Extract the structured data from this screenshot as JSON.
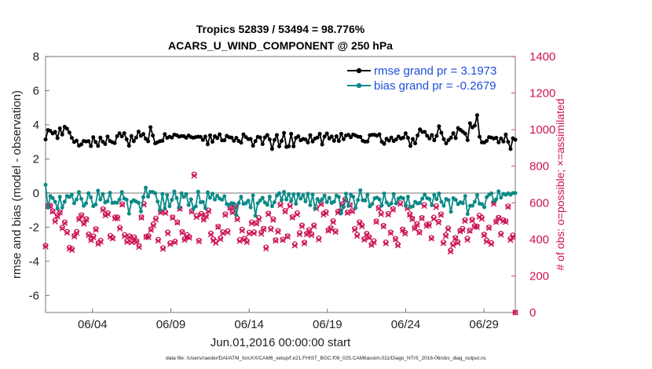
{
  "chart_data": {
    "type": "line",
    "title": "Tropics 52839 / 53494 = 98.776%",
    "subtitle": "ACARS_U_WIND_COMPONENT @ 250 hPa",
    "xlabel": "Jun.01,2016 00:00:00 start",
    "ylabel": "rmse and bias (model - observation)",
    "ylabel_right": "# of obs: o=possible; ×=assimilated",
    "xlim": [
      0,
      30.0
    ],
    "ylim": [
      -7,
      8
    ],
    "ylim_right": [
      0,
      1400
    ],
    "x_ticks": [
      {
        "x": 3.0,
        "label": "06/04"
      },
      {
        "x": 8.0,
        "label": "06/09"
      },
      {
        "x": 13.0,
        "label": "06/14"
      },
      {
        "x": 18.0,
        "label": "06/19"
      },
      {
        "x": 23.0,
        "label": "06/24"
      },
      {
        "x": 28.0,
        "label": "06/29"
      }
    ],
    "y_ticks": [
      8,
      6,
      4,
      2,
      0,
      -2,
      -4,
      -6
    ],
    "y_ticks_right": [
      1400,
      1200,
      1000,
      800,
      600,
      400,
      200,
      0
    ],
    "legend": [
      "rmse grand pr = 3.1973",
      "bias grand pr = -0.2679"
    ],
    "series": [
      {
        "name": "rmse",
        "color": "#000000",
        "axis": "left",
        "values": [
          3.14,
          3.69,
          3.64,
          3.49,
          3.58,
          3.22,
          3.79,
          3.43,
          3.88,
          3.77,
          3.55,
          3.23,
          2.99,
          3.07,
          2.78,
          2.85,
          3.05,
          3.02,
          3.04,
          2.75,
          3.27,
          2.99,
          2.76,
          3.25,
          3.01,
          2.87,
          3.31,
          3.05,
          2.98,
          2.93,
          3.33,
          3.5,
          3.32,
          3.51,
          3.15,
          2.77,
          3.34,
          3.04,
          3.25,
          3.6,
          3.35,
          3.46,
          3.18,
          3.03,
          3.86,
          3.37,
          2.91,
          2.98,
          3.04,
          3.06,
          3.45,
          3.23,
          3.3,
          3.25,
          3.42,
          3.39,
          3.3,
          3.34,
          3.33,
          3.24,
          3.37,
          3.28,
          3.24,
          3.28,
          3.3,
          3.29,
          3.11,
          3.31,
          2.86,
          3.38,
          3.0,
          3.33,
          3.22,
          3.44,
          3.09,
          3.09,
          3.35,
          3.27,
          3.25,
          3.06,
          3.23,
          3.05,
          2.95,
          3.44,
          3.28,
          3.16,
          3.17,
          2.77,
          3.04,
          3.29,
          3.26,
          2.87,
          3.26,
          3.4,
          3.14,
          2.59,
          3.11,
          3.4,
          2.74,
          3.05,
          3.52,
          2.7,
          2.74,
          3.47,
          2.74,
          3.23,
          3.33,
          3.09,
          3.17,
          3.14,
          2.96,
          3.39,
          3.02,
          3.19,
          3.25,
          3.47,
          2.85,
          3.31,
          3.49,
          3.19,
          3.32,
          3.06,
          3.33,
          3.05,
          3.47,
          3.16,
          3.37,
          3.41,
          3.27,
          3.43,
          3.37,
          3.3,
          3.29,
          3.06,
          3.01,
          3.02,
          3.39,
          3.41,
          3.41,
          3.36,
          3.44,
          3.01,
          2.88,
          3.18,
          3.07,
          3.25,
          3.05,
          3.14,
          3.31,
          3.19,
          3.24,
          3.5,
          3.23,
          2.76,
          3.17,
          2.91,
          3.37,
          3.73,
          3.58,
          3.58,
          3.36,
          3.2,
          3.4,
          3.09,
          3.35,
          3.91,
          3.53,
          3.16,
          2.91,
          3.1,
          3.24,
          3.51,
          3.22,
          3.81,
          3.7,
          3.59,
          3.48,
          3.1,
          4.09,
          3.85,
          3.95,
          4.56,
          3.3,
          2.97,
          2.96,
          3.06,
          3.28,
          3.25,
          3.19,
          3.24,
          2.97,
          3.2,
          3.02,
          3.43,
          3.0,
          2.58,
          3.21,
          3.12
        ]
      },
      {
        "name": "bias",
        "color": "#0b8a87",
        "axis": "left",
        "values": [
          0.48,
          -0.85,
          -0.18,
          -0.3,
          -0.51,
          -0.91,
          -0.22,
          -0.85,
          -0.51,
          -0.18,
          -0.23,
          -0.1,
          -0.6,
          -0.38,
          0.06,
          -0.34,
          -0.75,
          -0.6,
          -0.01,
          -0.25,
          -0.77,
          -0.67,
          0.14,
          -0.38,
          -0.06,
          -0.55,
          -0.48,
          0.01,
          -0.58,
          -0.56,
          -0.57,
          -0.38,
          0.06,
          -0.32,
          -0.39,
          -1.21,
          -0.52,
          -0.42,
          -0.5,
          -0.57,
          -1.08,
          -0.24,
          0.31,
          -0.21,
          0.07,
          0.06,
          -0.01,
          -0.5,
          -0.99,
          -0.05,
          -0.9,
          -0.12,
          -0.77,
          -0.4,
          0.09,
          -0.3,
          -0.84,
          -0.01,
          -0.23,
          -0.06,
          -0.7,
          -0.37,
          -0.92,
          -0.78,
          0.08,
          -0.54,
          -0.52,
          -0.88,
          0.04,
          -0.28,
          -0.04,
          -0.38,
          -0.17,
          -0.33,
          -0.39,
          -0.19,
          -0.65,
          -0.69,
          -0.59,
          -0.62,
          -1.29,
          -0.58,
          -0.22,
          -0.63,
          -0.6,
          -0.45,
          -0.84,
          -0.14,
          -1.33,
          -0.6,
          -0.44,
          -0.28,
          -0.56,
          -0.69,
          -0.22,
          -0.77,
          -0.54,
          -0.15,
          -0.01,
          -0.4,
          0.07,
          -0.38,
          -0.07,
          -0.46,
          -0.08,
          -0.63,
          -0.07,
          -0.33,
          -0.13,
          -0.49,
          -0.05,
          -0.71,
          -0.09,
          -0.91,
          -0.35,
          -0.5,
          -0.36,
          -0.15,
          -0.53,
          -0.28,
          -0.58,
          -0.51,
          -0.15,
          -0.23,
          -1.18,
          -0.82,
          -0.04,
          -0.73,
          -0.1,
          -0.22,
          -0.87,
          -0.41,
          0.16,
          -0.42,
          -0.44,
          -0.1,
          -0.78,
          -0.64,
          -0.31,
          -0.27,
          -0.37,
          -0.73,
          -0.03,
          -0.55,
          -0.71,
          -0.61,
          -0.06,
          -0.61,
          -0.33,
          -0.26,
          -0.31,
          -0.74,
          -0.22,
          -0.83,
          -0.78,
          -0.52,
          -0.61,
          -0.58,
          -0.33,
          -0.09,
          -0.3,
          -0.35,
          -0.71,
          -0.11,
          -0.36,
          -0.03,
          -0.52,
          -0.75,
          -0.35,
          -0.42,
          -1.1,
          -0.3,
          -0.4,
          -0.65,
          -0.54,
          -0.6,
          -0.18,
          -1.23,
          -0.75,
          -0.74,
          -0.51,
          -0.12,
          -0.62,
          -0.65,
          -0.83,
          -0.24,
          -0.1,
          -0.02,
          -0.48,
          -0.37,
          0.1,
          -0.27,
          -0.05,
          -0.1,
          -0.02,
          -0.1,
          -0.0,
          0.0
        ]
      },
      {
        "name": "possible",
        "marker": "o",
        "color": "#cc1155",
        "axis": "right",
        "values": [
          366,
          585,
          585,
          554,
          505,
          531,
          548,
          465,
          494,
          442,
          355,
          349,
          421,
          442,
          515,
          533,
          491,
          512,
          428,
          401,
          418,
          457,
          380,
          394,
          566,
          537,
          544,
          421,
          409,
          521,
          521,
          465,
          593,
          425,
          391,
          418,
          391,
          412,
          391,
          364,
          522,
          596,
          416,
          419,
          456,
          483,
          515,
          399,
          552,
          353,
          549,
          439,
          380,
          521,
          389,
          494,
          570,
          441,
          403,
          425,
          413,
          555,
          756,
          529,
          394,
          541,
          513,
          532,
          559,
          433,
          402,
          388,
          470,
          407,
          440,
          538,
          446,
          575,
          552,
          583,
          515,
          398,
          454,
          405,
          391,
          438,
          494,
          440,
          490,
          518,
          438,
          459,
          357,
          542,
          460,
          511,
          397,
          447,
          593,
          400,
          557,
          418,
          589,
          523,
          374,
          544,
          435,
          477,
          383,
          432,
          452,
          429,
          477,
          575,
          406,
          597,
          542,
          550,
          451,
          462,
          501,
          445,
          553,
          556,
          596,
          620,
          548,
          589,
          556,
          459,
          426,
          495,
          478,
          403,
          432,
          414,
          374,
          391,
          499,
          574,
          544,
          475,
          384,
          540,
          439,
          566,
          404,
          373,
          599,
          455,
          437,
          575,
          538,
          514,
          464,
          484,
          441,
          518,
          590,
          481,
          484,
          409,
          520,
          583,
          497,
          538,
          385,
          424,
          461,
          339,
          375,
          409,
          386,
          448,
          459,
          506,
          405,
          449,
          508,
          474,
          472,
          531,
          520,
          427,
          395,
          466,
          381,
          601,
          499,
          519,
          432,
          506,
          500,
          582,
          404,
          423,
          0
        ]
      },
      {
        "name": "assimilated",
        "marker": "x",
        "color": "#cc1155",
        "axis": "right",
        "values": [
          360,
          581,
          580,
          551,
          497,
          525,
          546,
          460,
          489,
          436,
          348,
          341,
          415,
          435,
          509,
          529,
          485,
          507,
          422,
          395,
          411,
          452,
          375,
          387,
          560,
          530,
          538,
          413,
          404,
          514,
          514,
          458,
          589,
          417,
          385,
          413,
          383,
          406,
          385,
          358,
          518,
          589,
          412,
          411,
          451,
          476,
          508,
          392,
          546,
          347,
          544,
          432,
          373,
          517,
          383,
          491,
          566,
          437,
          396,
          417,
          408,
          551,
          748,
          521,
          389,
          535,
          507,
          525,
          553,
          426,
          394,
          380,
          467,
          401,
          434,
          533,
          438,
          571,
          546,
          576,
          508,
          390,
          447,
          399,
          384,
          431,
          487,
          433,
          485,
          510,
          430,
          455,
          349,
          537,
          454,
          506,
          392,
          441,
          587,
          396,
          552,
          414,
          581,
          519,
          366,
          536,
          427,
          471,
          378,
          427,
          447,
          422,
          471,
          568,
          398,
          592,
          535,
          543,
          447,
          458,
          494,
          440,
          545,
          553,
          589,
          612,
          544,
          586,
          553,
          452,
          418,
          489,
          470,
          398,
          426,
          409,
          368,
          383,
          495,
          570,
          537,
          470,
          377,
          535,
          434,
          562,
          399,
          366,
          593,
          450,
          431,
          569,
          534,
          510,
          459,
          479,
          436,
          514,
          582,
          473,
          476,
          404,
          512,
          575,
          492,
          533,
          378,
          418,
          454,
          333,
          368,
          405,
          380,
          443,
          451,
          500,
          397,
          445,
          503,
          468,
          467,
          523,
          512,
          422,
          388,
          462,
          374,
          594,
          494,
          515,
          425,
          500,
          494,
          577,
          396,
          415,
          0
        ]
      }
    ]
  },
  "footnote": "data file: /Users/raeder/DAI/ATM_forcXX/CAM6_setup/f.e21.FHIST_BGC.f09_025.CAM6assim.011/Diags_NTrS_2016-06/obs_diag_output.nc"
}
